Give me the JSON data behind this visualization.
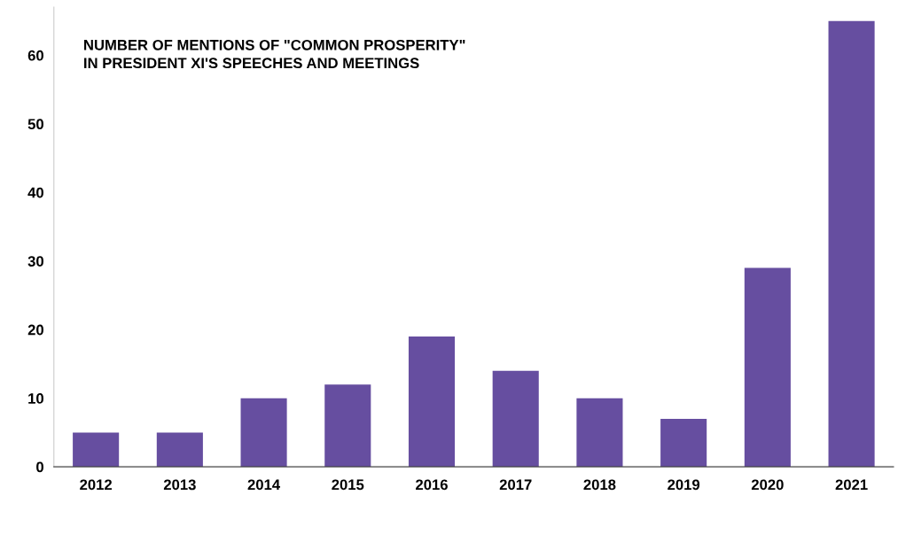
{
  "chart_data": {
    "type": "bar",
    "title": "NUMBER OF MENTIONS OF \"COMMON PROSPERITY\"\nIN PRESIDENT XI'S SPEECHES AND MEETINGS",
    "categories": [
      "2012",
      "2013",
      "2014",
      "2015",
      "2016",
      "2017",
      "2018",
      "2019",
      "2020",
      "2021"
    ],
    "values": [
      5,
      5,
      10,
      12,
      19,
      14,
      10,
      7,
      29,
      65
    ],
    "color": "#664ea0",
    "ylim": [
      0,
      67
    ],
    "yticks": [
      0,
      10,
      20,
      30,
      40,
      50,
      60
    ],
    "grid": false
  }
}
